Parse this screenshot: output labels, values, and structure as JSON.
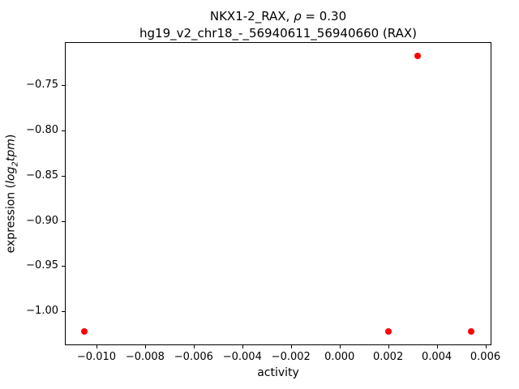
{
  "title": {
    "pre": "NKX1-2_RAX, ",
    "rho": "ρ",
    "post": " = 0.30",
    "line2": "hg19_v2_chr18_-_56940611_56940660 (RAX)"
  },
  "ylabel_parts": {
    "pre": "expression (",
    "log": "log",
    "sub": "2",
    "tpm": "tpm",
    "post": ")"
  },
  "chart_data": {
    "type": "scatter",
    "title": "NKX1-2_RAX, ρ = 0.30",
    "subtitle": "hg19_v2_chr18_-_56940611_56940660 (RAX)",
    "xlabel": "activity",
    "ylabel": "expression (log2 tpm)",
    "marker_color": "#ff0000",
    "marker_size_px": 8,
    "grid": false,
    "points": [
      {
        "x": -0.0105,
        "y": -1.022
      },
      {
        "x": 0.002,
        "y": -1.022
      },
      {
        "x": 0.0054,
        "y": -1.022
      },
      {
        "x": 0.0032,
        "y": -0.718
      }
    ],
    "xlim": [
      -0.0113,
      0.00625
    ],
    "ylim": [
      -1.0372,
      -0.7028
    ],
    "xticks": [
      -0.01,
      -0.008,
      -0.006,
      -0.004,
      -0.002,
      0.0,
      0.002,
      0.004,
      0.006
    ],
    "xtick_labels": [
      "−0.010",
      "−0.008",
      "−0.006",
      "−0.004",
      "−0.002",
      "0.000",
      "0.002",
      "0.004",
      "0.006"
    ],
    "yticks": [
      -1.0,
      -0.95,
      -0.9,
      -0.85,
      -0.8,
      -0.75
    ],
    "ytick_labels": [
      "−1.00",
      "−0.95",
      "−0.90",
      "−0.85",
      "−0.80",
      "−0.75"
    ]
  }
}
